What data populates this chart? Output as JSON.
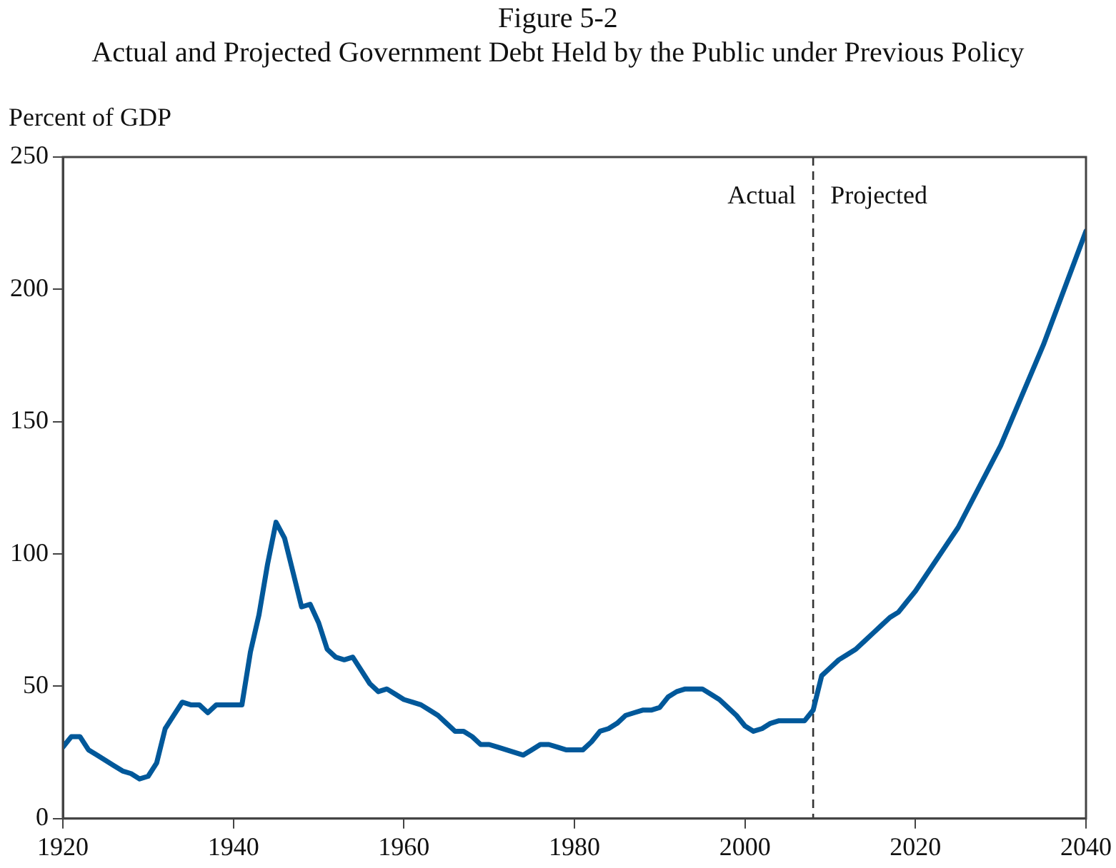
{
  "chart_data": {
    "type": "line",
    "title": "Figure 5-2",
    "subtitle": "Actual and Projected Government Debt Held by the Public under Previous Policy",
    "ylabel": "Percent of GDP",
    "x": [
      1920,
      1921,
      1922,
      1923,
      1924,
      1925,
      1926,
      1927,
      1928,
      1929,
      1930,
      1931,
      1932,
      1933,
      1934,
      1935,
      1936,
      1937,
      1938,
      1939,
      1940,
      1941,
      1942,
      1943,
      1944,
      1945,
      1946,
      1947,
      1948,
      1949,
      1950,
      1951,
      1952,
      1953,
      1954,
      1955,
      1956,
      1957,
      1958,
      1959,
      1960,
      1961,
      1962,
      1963,
      1964,
      1965,
      1966,
      1967,
      1968,
      1969,
      1970,
      1971,
      1972,
      1973,
      1974,
      1975,
      1976,
      1977,
      1978,
      1979,
      1980,
      1981,
      1982,
      1983,
      1984,
      1985,
      1986,
      1987,
      1988,
      1989,
      1990,
      1991,
      1992,
      1993,
      1994,
      1995,
      1996,
      1997,
      1998,
      1999,
      2000,
      2001,
      2002,
      2003,
      2004,
      2005,
      2006,
      2007,
      2008,
      2009,
      2010,
      2011,
      2012,
      2013,
      2014,
      2015,
      2016,
      2017,
      2018,
      2019,
      2020,
      2025,
      2030,
      2035,
      2040
    ],
    "series": [
      {
        "color": "#00589a",
        "values": [
          27,
          31,
          31,
          26,
          24,
          22,
          20,
          18,
          17,
          15,
          16,
          21,
          34,
          39,
          44,
          43,
          43,
          40,
          43,
          43,
          43,
          43,
          63,
          77,
          96,
          112,
          106,
          93,
          80,
          81,
          74,
          64,
          61,
          60,
          61,
          56,
          51,
          48,
          49,
          47,
          45,
          44,
          43,
          41,
          39,
          36,
          33,
          33,
          31,
          28,
          28,
          27,
          26,
          25,
          24,
          26,
          28,
          28,
          27,
          26,
          26,
          26,
          29,
          33,
          34,
          36,
          39,
          40,
          41,
          41,
          42,
          46,
          48,
          49,
          49,
          49,
          47,
          45,
          42,
          39,
          35,
          33,
          34,
          36,
          37,
          37,
          37,
          37,
          41,
          54,
          57,
          60,
          62,
          64,
          67,
          70,
          73,
          76,
          78,
          82,
          86,
          110,
          141,
          179,
          222
        ]
      }
    ],
    "xlim": [
      1920,
      2040
    ],
    "xticks": [
      1920,
      1940,
      1960,
      1980,
      2000,
      2020,
      2040
    ],
    "ylim": [
      0,
      250
    ],
    "yticks": [
      0,
      50,
      100,
      150,
      200,
      250
    ],
    "grid": false,
    "legend": false,
    "marker": "none",
    "line_style": "solid",
    "ref_lines": [
      {
        "axis": "x",
        "value": 2008,
        "color": "#333333",
        "line_style": "dashed"
      }
    ],
    "annotations": [
      "Actual",
      "Projected"
    ]
  }
}
